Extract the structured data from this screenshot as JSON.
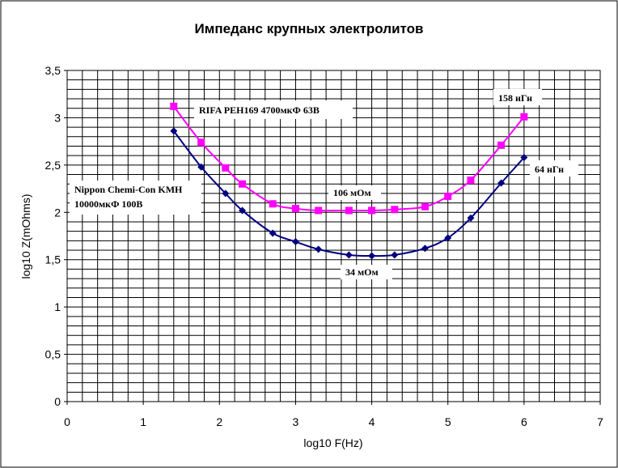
{
  "chart_data": {
    "type": "line",
    "title": "Импеданс крупных электролитов",
    "xlabel": "log10 F(Hz)",
    "ylabel": "log10 Z(mOhms)",
    "xlim": [
      0,
      7
    ],
    "ylim": [
      0,
      3.5
    ],
    "xticks": [
      "0",
      "1",
      "2",
      "3",
      "4",
      "5",
      "6",
      "7"
    ],
    "yticks": [
      "0",
      "0,5",
      "1",
      "1,5",
      "2",
      "2,5",
      "3",
      "3,5"
    ],
    "grid": true,
    "colors": {
      "series_navy": "#000080",
      "series_magenta": "#ff00ff",
      "plot_bg": "#ffffff",
      "grid": "#000000",
      "outer_border": "#000000"
    },
    "series": [
      {
        "name": "Nippon Chemi-Con KMH 10000мкФ 100В",
        "marker": "diamond",
        "color": "#000080",
        "x": [
          1.4,
          1.76,
          2.08,
          2.3,
          2.7,
          3.0,
          3.3,
          3.7,
          4.0,
          4.3,
          4.7,
          5.0,
          5.3,
          5.7,
          6.0
        ],
        "y": [
          2.86,
          2.48,
          2.2,
          2.02,
          1.78,
          1.69,
          1.61,
          1.55,
          1.54,
          1.55,
          1.62,
          1.73,
          1.94,
          2.31,
          2.58
        ]
      },
      {
        "name": "RIFA PEH169 4700мкФ 63В",
        "marker": "square",
        "color": "#ff00ff",
        "x": [
          1.4,
          1.76,
          2.08,
          2.3,
          2.7,
          3.0,
          3.3,
          3.7,
          4.0,
          4.3,
          4.7,
          5.0,
          5.3,
          5.7,
          6.0
        ],
        "y": [
          3.12,
          2.74,
          2.47,
          2.3,
          2.09,
          2.04,
          2.02,
          2.02,
          2.02,
          2.03,
          2.06,
          2.17,
          2.34,
          2.71,
          3.01
        ]
      }
    ],
    "annotations": {
      "rifa": "RIFA PEH169  4700мкФ 63В",
      "nippon_line1": "Nippon Chemi-Con KMH",
      "nippon_line2": "10000мкФ 100В",
      "l_rifa": "158 нГн",
      "r_rifa": "106 мОм",
      "l_nippon": "64 нГн",
      "r_nippon": "34 мОм"
    }
  }
}
